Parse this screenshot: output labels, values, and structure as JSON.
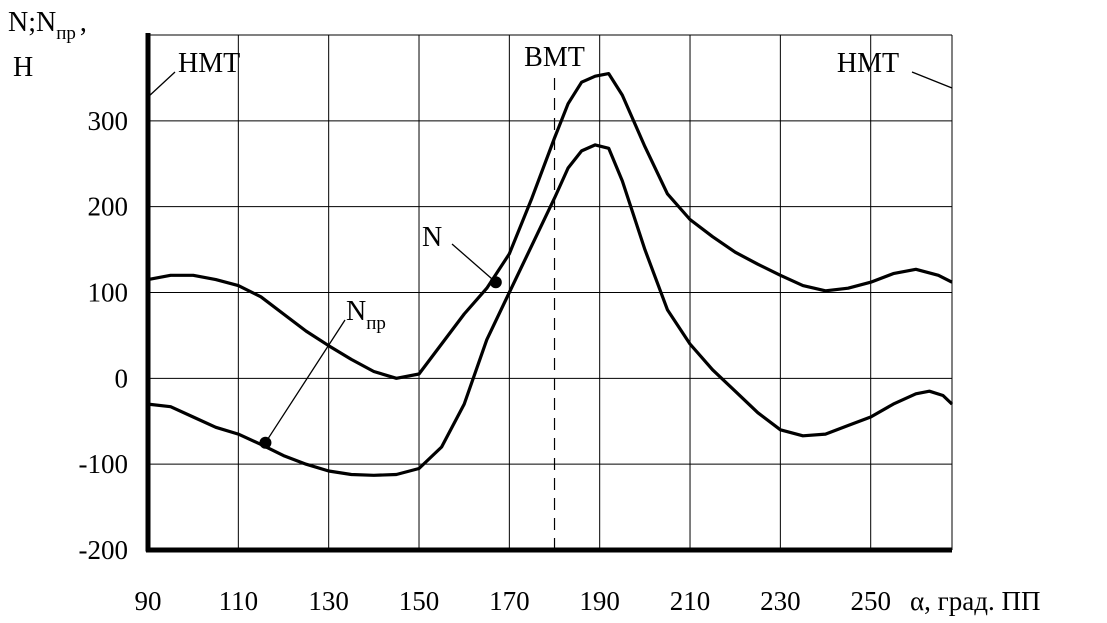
{
  "chart_data": {
    "type": "line",
    "title": "",
    "xlabel": "α, град. ПП",
    "ylabel": {
      "main": "N;N",
      "sub": "пр",
      "suffix": ",",
      "unit": "Н"
    },
    "xlim": [
      90,
      268
    ],
    "ylim": [
      -200,
      400
    ],
    "x_ticks": [
      90,
      110,
      130,
      150,
      170,
      190,
      210,
      230,
      250
    ],
    "x_tick_labels": [
      "90",
      "110",
      "130",
      "150",
      "170",
      "190",
      "210",
      "230",
      "250"
    ],
    "y_ticks": [
      -200,
      -100,
      0,
      100,
      200,
      300
    ],
    "y_tick_labels": [
      "-200",
      "-100",
      "0",
      "100",
      "200",
      "300"
    ],
    "grid": true,
    "annotations": [
      {
        "text": "НМТ",
        "x": 90
      },
      {
        "text": "ВМТ",
        "x": 180
      },
      {
        "text": "НМТ",
        "x": 268
      }
    ],
    "series": [
      {
        "name": "N",
        "label_point": [
          167,
          112
        ],
        "x": [
          90,
          95,
          100,
          105,
          110,
          115,
          120,
          125,
          130,
          135,
          140,
          145,
          150,
          155,
          160,
          165,
          170,
          175,
          180,
          183,
          186,
          189,
          192,
          195,
          200,
          205,
          210,
          215,
          220,
          225,
          230,
          235,
          240,
          245,
          250,
          255,
          260,
          265,
          268
        ],
        "y": [
          115,
          120,
          120,
          115,
          108,
          95,
          75,
          55,
          38,
          22,
          8,
          0,
          5,
          40,
          75,
          105,
          145,
          210,
          280,
          320,
          345,
          352,
          355,
          330,
          270,
          215,
          185,
          165,
          147,
          133,
          120,
          108,
          102,
          105,
          112,
          122,
          127,
          120,
          112
        ]
      },
      {
        "name": "N",
        "name_sub": "пр",
        "label_point": [
          116,
          -75
        ],
        "x": [
          90,
          95,
          100,
          105,
          110,
          115,
          120,
          125,
          130,
          135,
          140,
          145,
          150,
          155,
          160,
          165,
          170,
          175,
          180,
          183,
          186,
          189,
          192,
          195,
          200,
          205,
          210,
          215,
          220,
          225,
          230,
          235,
          240,
          245,
          250,
          255,
          260,
          263,
          266,
          268
        ],
        "y": [
          -30,
          -33,
          -45,
          -57,
          -65,
          -77,
          -90,
          -100,
          -108,
          -112,
          -113,
          -112,
          -105,
          -80,
          -30,
          45,
          100,
          155,
          210,
          245,
          265,
          272,
          268,
          230,
          150,
          80,
          40,
          10,
          -15,
          -40,
          -60,
          -67,
          -65,
          -55,
          -45,
          -30,
          -18,
          -15,
          -20,
          -30
        ]
      }
    ]
  }
}
